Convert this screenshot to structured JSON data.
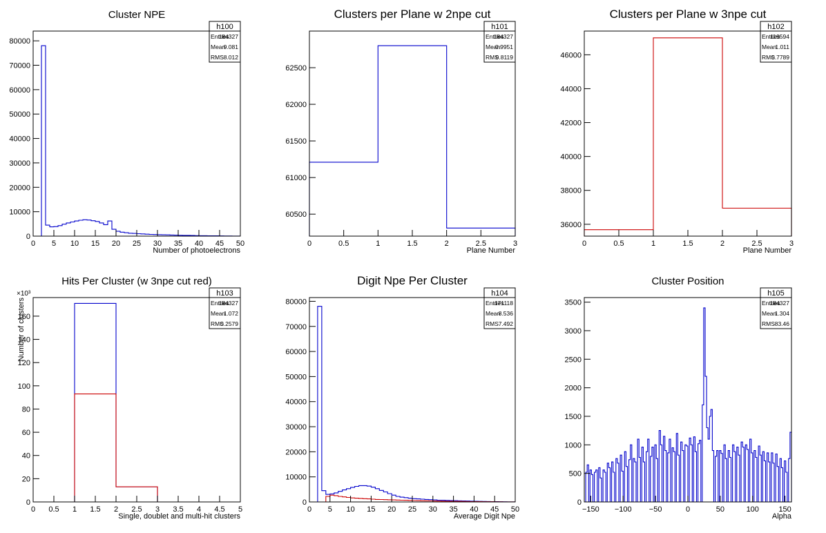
{
  "chart_data": [
    {
      "id": "h100",
      "type": "bar",
      "title": "Cluster NPE",
      "xlabel": "Number of photoelectrons",
      "ylabel": "",
      "xlim": [
        0,
        50
      ],
      "ylim": [
        0,
        84000
      ],
      "xticks": [
        0,
        5,
        10,
        15,
        20,
        25,
        30,
        35,
        40,
        45,
        50
      ],
      "yticks": [
        0,
        10000,
        20000,
        30000,
        40000,
        50000,
        60000,
        70000,
        80000
      ],
      "stats": {
        "name": "h100",
        "rows": [
          [
            "Entries",
            "184327"
          ],
          [
            "Mean",
            "9.081"
          ],
          [
            "RMS",
            "8.012"
          ]
        ]
      },
      "series": [
        {
          "color": "#0000cc",
          "edges": [
            2,
            3,
            4,
            5,
            6,
            7,
            8,
            9,
            10,
            11,
            12,
            13,
            14,
            15,
            16,
            17,
            18,
            19,
            20,
            21,
            22,
            23,
            24,
            25,
            26,
            27,
            28,
            29,
            30,
            31,
            32,
            33,
            34,
            35,
            36,
            37,
            38,
            39,
            40,
            41,
            42,
            43,
            44,
            45,
            46,
            47,
            48,
            49,
            50
          ],
          "values": [
            78000,
            4500,
            3800,
            3900,
            4300,
            4900,
            5400,
            5800,
            6200,
            6500,
            6700,
            6600,
            6300,
            6000,
            5400,
            4700,
            6200,
            2800,
            2000,
            1600,
            1400,
            1200,
            1100,
            1000,
            900,
            800,
            700,
            650,
            600,
            550,
            500,
            450,
            400,
            350,
            300,
            300,
            250,
            200,
            180,
            160,
            140,
            120,
            100,
            80,
            60,
            50,
            40,
            30
          ]
        }
      ]
    },
    {
      "id": "h101",
      "type": "bar",
      "title": "Clusters per Plane w 2npe cut",
      "xlabel": "Plane Number",
      "ylabel": "",
      "xlim": [
        0,
        3
      ],
      "ylim": [
        60200,
        63000
      ],
      "xticks": [
        0,
        0.5,
        1,
        1.5,
        2,
        2.5,
        3
      ],
      "yticks": [
        60500,
        61000,
        61500,
        62000,
        62500
      ],
      "stats": {
        "name": "h101",
        "rows": [
          [
            "Entries",
            "184327"
          ],
          [
            "Mean",
            "0.9951"
          ],
          [
            "RMS",
            "0.8119"
          ]
        ]
      },
      "series": [
        {
          "color": "#0000cc",
          "edges": [
            0,
            1,
            2,
            3
          ],
          "values": [
            61210,
            62800,
            60310
          ]
        }
      ]
    },
    {
      "id": "h102",
      "type": "bar",
      "title": "Clusters per Plane w 3npe cut",
      "xlabel": "Plane Number",
      "ylabel": "",
      "xlim": [
        0,
        3
      ],
      "ylim": [
        35300,
        47400
      ],
      "xticks": [
        0,
        0.5,
        1,
        1.5,
        2,
        2.5,
        3
      ],
      "yticks": [
        36000,
        38000,
        40000,
        42000,
        44000,
        46000
      ],
      "stats": {
        "name": "h102",
        "rows": [
          [
            "Entries",
            "119594"
          ],
          [
            "Mean",
            "1.011"
          ],
          [
            "RMS",
            "0.7789"
          ]
        ]
      },
      "series": [
        {
          "color": "#cc0000",
          "edges": [
            0,
            1,
            2,
            3
          ],
          "values": [
            35680,
            47000,
            36950
          ]
        }
      ]
    },
    {
      "id": "h103",
      "type": "bar",
      "title": "Hits Per Cluster (w 3npe cut red)",
      "xlabel": "Single, doublet and multi-hit clusters",
      "ylabel": "Number of clusters",
      "yexponent": "×10³",
      "xlim": [
        0,
        5
      ],
      "ylim": [
        0,
        176
      ],
      "xticks": [
        0,
        0.5,
        1,
        1.5,
        2,
        2.5,
        3,
        3.5,
        4,
        4.5,
        5
      ],
      "yticks": [
        0,
        20,
        40,
        60,
        80,
        100,
        120,
        140,
        160
      ],
      "stats": {
        "name": "h103",
        "rows": [
          [
            "Entries",
            "184327"
          ],
          [
            "Mean",
            "1.072"
          ],
          [
            "RMS",
            "0.2579"
          ]
        ]
      },
      "series": [
        {
          "color": "#0000cc",
          "edges": [
            1,
            2,
            3
          ],
          "values": [
            171,
            13
          ]
        },
        {
          "color": "#cc0000",
          "edges": [
            1,
            2,
            3
          ],
          "values": [
            93,
            13
          ]
        }
      ]
    },
    {
      "id": "h104",
      "type": "bar",
      "title": "Digit Npe Per Cluster",
      "xlabel": "Average Digit Npe",
      "ylabel": "",
      "xlim": [
        0,
        50
      ],
      "ylim": [
        0,
        81500
      ],
      "xticks": [
        0,
        5,
        10,
        15,
        20,
        25,
        30,
        35,
        40,
        45,
        50
      ],
      "yticks": [
        0,
        10000,
        20000,
        30000,
        40000,
        50000,
        60000,
        70000,
        80000
      ],
      "stats": {
        "name": "h104",
        "rows": [
          [
            "Entries",
            "171118"
          ],
          [
            "Mean",
            "8.536"
          ],
          [
            "RMS",
            "7.492"
          ]
        ]
      },
      "series": [
        {
          "color": "#0000cc",
          "edges": [
            2,
            3,
            4,
            5,
            6,
            7,
            8,
            9,
            10,
            11,
            12,
            13,
            14,
            15,
            16,
            17,
            18,
            19,
            20,
            21,
            22,
            23,
            24,
            25,
            26,
            27,
            28,
            29,
            30,
            31,
            32,
            33,
            34,
            35,
            36,
            37,
            38,
            39,
            40,
            41,
            42,
            43,
            44,
            45,
            46,
            47,
            48,
            49,
            50
          ],
          "values": [
            78000,
            4500,
            3000,
            3200,
            3600,
            4200,
            4800,
            5300,
            5800,
            6200,
            6500,
            6500,
            6300,
            5900,
            5300,
            4600,
            4000,
            3300,
            2700,
            2200,
            1900,
            1700,
            1500,
            1300,
            1200,
            1100,
            1000,
            900,
            800,
            700,
            650,
            600,
            550,
            500,
            450,
            400,
            350,
            300,
            260,
            220,
            190,
            160,
            130,
            100,
            80,
            60,
            40,
            30
          ]
        },
        {
          "color": "#cc0000",
          "edges": [
            3,
            4,
            5,
            6,
            7,
            8,
            9,
            10,
            11,
            12,
            13,
            14,
            15,
            16,
            17,
            18,
            19,
            20,
            21,
            22,
            23,
            24,
            25,
            26,
            27,
            28,
            29,
            30,
            31,
            32,
            33,
            34,
            35,
            36,
            37,
            38,
            39,
            40,
            41,
            42,
            43,
            44,
            45,
            46,
            47,
            48,
            49,
            50
          ],
          "values": [
            0,
            2200,
            2700,
            2500,
            2200,
            2000,
            1800,
            1600,
            1500,
            1400,
            1300,
            1200,
            1100,
            1000,
            950,
            900,
            850,
            800,
            750,
            700,
            650,
            600,
            560,
            520,
            480,
            440,
            400,
            370,
            340,
            310,
            280,
            250,
            230,
            210,
            190,
            170,
            150,
            130,
            110,
            90,
            80,
            70,
            60,
            50,
            40,
            30,
            20
          ]
        }
      ]
    },
    {
      "id": "h105",
      "type": "bar",
      "title": "Cluster Position",
      "xlabel": "Alpha",
      "ylabel": "",
      "xlim": [
        -160,
        160
      ],
      "ylim": [
        0,
        3580
      ],
      "xticks": [
        -150,
        -100,
        -50,
        0,
        50,
        100,
        150
      ],
      "yticks": [
        0,
        500,
        1000,
        1500,
        2000,
        2500,
        3000,
        3500
      ],
      "stats": {
        "name": "h105",
        "rows": [
          [
            "Entries",
            "184327"
          ],
          [
            "Mean",
            "1.304"
          ],
          [
            "RMS",
            "83.46"
          ]
        ]
      },
      "series": [
        {
          "color": "#0000cc",
          "values": [
            0,
            520,
            650,
            0,
            560,
            480,
            0,
            520,
            560,
            0,
            600,
            420,
            0,
            560,
            520,
            0,
            680,
            600,
            0,
            700,
            520,
            0,
            760,
            680,
            0,
            820,
            540,
            0,
            880,
            620,
            0,
            740,
            1000,
            0,
            760,
            700,
            0,
            1100,
            780,
            0,
            960,
            700,
            0,
            880,
            1100,
            0,
            800,
            960,
            0,
            1000,
            760,
            0,
            1250,
            1000,
            0,
            1150,
            900,
            0,
            860,
            1100,
            0,
            950,
            880,
            0,
            1200,
            820,
            0,
            1050,
            900,
            0,
            1000,
            980,
            0,
            1120,
            1000,
            0,
            1140,
            880,
            0,
            1020,
            1080,
            0,
            1700,
            3400,
            2200,
            1300,
            1100,
            1500,
            1620,
            900,
            0,
            800,
            900,
            0,
            900,
            850,
            0,
            1000,
            760,
            0,
            900,
            780,
            0,
            1000,
            880,
            0,
            960,
            820,
            0,
            1050,
            960,
            0,
            1000,
            920,
            0,
            1100,
            860,
            0,
            900,
            780,
            0,
            980,
            820,
            0,
            880,
            720,
            0,
            860,
            700,
            0,
            860,
            680,
            0,
            840,
            620,
            0,
            760,
            600,
            0,
            720,
            520,
            0,
            760,
            1220
          ]
        }
      ]
    }
  ]
}
